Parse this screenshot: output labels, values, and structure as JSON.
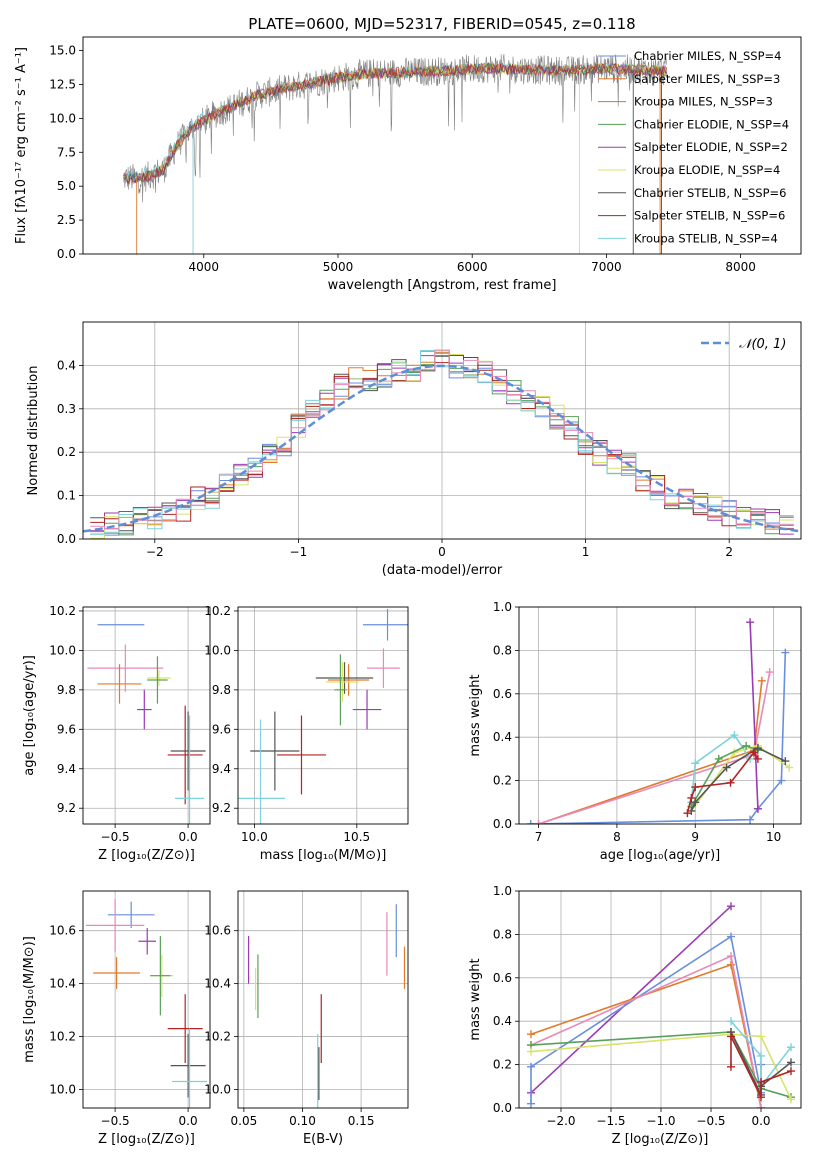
{
  "colors": {
    "chab_miles": "#6a8fdc",
    "salp_miles": "#e07b2c",
    "krou_miles": "#cc7a2a",
    "chab_elod": "#5aa05a",
    "salp_elod": "#9b3bb5",
    "krou_elod": "#d8e36a",
    "chab_stel": "#555555",
    "salp_stel": "#b02424",
    "krou_stel": "#7dd2dc",
    "pink": "#e889b8",
    "gauss": "#5b8fd6"
  },
  "chart_data": [
    {
      "id": "spectrum",
      "type": "line",
      "title": "PLATE=0600, MJD=52317, FIBERID=0545, z=0.118",
      "xlabel": "wavelength [Angstrom, rest frame]",
      "ylabel": "Flux [fλ10⁻¹⁷ erg cm⁻² s⁻¹ A⁻¹]",
      "xlim": [
        3100,
        8450
      ],
      "ylim": [
        0,
        16
      ],
      "xticks": [
        4000,
        5000,
        6000,
        7000,
        8000
      ],
      "yticks": [
        0.0,
        2.5,
        5.0,
        7.5,
        10.0,
        12.5,
        15.0
      ],
      "legend": [
        {
          "label": "Chabrier MILES, N_SSP=4",
          "color": "chab_miles"
        },
        {
          "label": "Salpeter MILES, N_SSP=3",
          "color": "salp_miles"
        },
        {
          "label": "Kroupa MILES, N_SSP=3",
          "color": "krou_miles"
        },
        {
          "label": "Chabrier ELODIE, N_SSP=4",
          "color": "chab_elod"
        },
        {
          "label": "Salpeter ELODIE, N_SSP=2",
          "color": "salp_elod"
        },
        {
          "label": "Kroupa ELODIE, N_SSP=4",
          "color": "krou_elod"
        },
        {
          "label": "Chabrier STELIB, N_SSP=6",
          "color": "chab_stel"
        },
        {
          "label": "Salpeter STELIB, N_SSP=6",
          "color": "salp_stel"
        },
        {
          "label": "Kroupa STELIB, N_SSP=4",
          "color": "krou_stel"
        }
      ],
      "legend_placement": "right",
      "continuum": {
        "x": [
          3400,
          3550,
          3700,
          3800,
          3900,
          4000,
          4100,
          4200,
          4400,
          4600,
          4800,
          5000,
          5200,
          5500,
          5800,
          6100,
          6400,
          6700,
          7000,
          7200,
          7400
        ],
        "y": [
          5.6,
          5.6,
          6.2,
          8.0,
          9.2,
          9.8,
          10.4,
          10.8,
          11.7,
          12.2,
          12.6,
          13.0,
          13.3,
          13.4,
          13.5,
          13.7,
          13.6,
          13.5,
          13.7,
          13.6,
          13.5
        ]
      }
    },
    {
      "id": "residuals",
      "type": "step",
      "xlabel": "(data-model)/error",
      "ylabel": "Normed distribution",
      "xlim": [
        -2.5,
        2.5
      ],
      "ylim": [
        0,
        0.5
      ],
      "xticks": [
        -2,
        -1,
        0,
        1,
        2
      ],
      "yticks": [
        0.0,
        0.1,
        0.2,
        0.3,
        0.4
      ],
      "legend": [
        {
          "label": "𝒩(0, 1)",
          "color": "gauss"
        }
      ],
      "legend_placement": "top-right",
      "bin_centers": [
        -2.4,
        -2.3,
        -2.2,
        -2.1,
        -2.0,
        -1.9,
        -1.8,
        -1.7,
        -1.6,
        -1.5,
        -1.4,
        -1.3,
        -1.2,
        -1.1,
        -1.0,
        -0.9,
        -0.8,
        -0.7,
        -0.6,
        -0.5,
        -0.4,
        -0.3,
        -0.2,
        -0.1,
        0.0,
        0.1,
        0.2,
        0.3,
        0.4,
        0.5,
        0.6,
        0.7,
        0.8,
        0.9,
        1.0,
        1.1,
        1.2,
        1.3,
        1.4,
        1.5,
        1.6,
        1.7,
        1.8,
        1.9,
        2.0,
        2.1,
        2.2,
        2.3,
        2.4
      ],
      "histogram_mean": [
        0.025,
        0.03,
        0.035,
        0.045,
        0.05,
        0.06,
        0.07,
        0.09,
        0.1,
        0.12,
        0.15,
        0.17,
        0.19,
        0.21,
        0.26,
        0.29,
        0.32,
        0.35,
        0.37,
        0.37,
        0.38,
        0.39,
        0.39,
        0.41,
        0.41,
        0.4,
        0.39,
        0.38,
        0.36,
        0.34,
        0.32,
        0.3,
        0.28,
        0.26,
        0.22,
        0.2,
        0.18,
        0.17,
        0.14,
        0.12,
        0.1,
        0.09,
        0.08,
        0.07,
        0.06,
        0.05,
        0.045,
        0.04,
        0.035
      ]
    },
    {
      "id": "age_vs_Z",
      "type": "errorbar",
      "xlabel": "Z [log₁₀(Z/Z⊙)]",
      "ylabel": "age  [log₁₀(age/yr)]",
      "xlim": [
        -0.72,
        0.15
      ],
      "ylim": [
        9.12,
        10.22
      ],
      "xticks": [
        -0.5,
        0.0
      ],
      "yticks": [
        9.2,
        9.4,
        9.6,
        9.8,
        10.0,
        10.2
      ],
      "points": [
        {
          "x": -0.46,
          "y": 10.13,
          "xerr": 0.16,
          "yerr": 0.0,
          "color": "chab_miles"
        },
        {
          "x": -0.43,
          "y": 9.91,
          "xerr": 0.26,
          "yerr": 0.12,
          "color": "pink"
        },
        {
          "x": -0.47,
          "y": 9.83,
          "xerr": 0.15,
          "yerr": 0.1,
          "color": "salp_miles"
        },
        {
          "x": -0.2,
          "y": 9.86,
          "xerr": 0.08,
          "yerr": 0.04,
          "color": "krou_elod"
        },
        {
          "x": -0.21,
          "y": 9.85,
          "xerr": 0.07,
          "yerr": 0.12,
          "color": "chab_elod"
        },
        {
          "x": -0.3,
          "y": 9.7,
          "xerr": 0.05,
          "yerr": 0.1,
          "color": "salp_elod"
        },
        {
          "x": 0.0,
          "y": 9.49,
          "xerr": 0.12,
          "yerr": 0.2,
          "color": "chab_stel"
        },
        {
          "x": -0.02,
          "y": 9.47,
          "xerr": 0.12,
          "yerr": 0.25,
          "color": "salp_stel"
        },
        {
          "x": 0.01,
          "y": 9.25,
          "xerr": 0.1,
          "yerr": 0.42,
          "color": "krou_stel"
        }
      ]
    },
    {
      "id": "age_vs_mass",
      "type": "errorbar",
      "xlabel": "mass [log₁₀(M/M⊙)]",
      "ylabel": "",
      "xlim": [
        9.92,
        10.75
      ],
      "ylim": [
        9.12,
        10.22
      ],
      "xticks": [
        10.0,
        10.5
      ],
      "yticks": [
        9.2,
        9.4,
        9.6,
        9.8,
        10.0,
        10.2
      ],
      "points": [
        {
          "x": 10.65,
          "y": 10.13,
          "xerr": 0.12,
          "yerr": 0.08,
          "color": "chab_miles"
        },
        {
          "x": 10.63,
          "y": 9.91,
          "xerr": 0.08,
          "yerr": 0.1,
          "color": "pink"
        },
        {
          "x": 10.46,
          "y": 9.85,
          "xerr": 0.1,
          "yerr": 0.08,
          "color": "salp_miles"
        },
        {
          "x": 10.44,
          "y": 9.86,
          "xerr": 0.14,
          "yerr": 0.08,
          "color": "chab_stel"
        },
        {
          "x": 10.43,
          "y": 9.84,
          "xerr": 0.08,
          "yerr": 0.1,
          "color": "krou_elod"
        },
        {
          "x": 10.42,
          "y": 9.8,
          "xerr": 0.03,
          "yerr": 0.18,
          "color": "chab_elod"
        },
        {
          "x": 10.55,
          "y": 9.7,
          "xerr": 0.07,
          "yerr": 0.1,
          "color": "salp_elod"
        },
        {
          "x": 10.1,
          "y": 9.49,
          "xerr": 0.12,
          "yerr": 0.2,
          "color": "chab_stel"
        },
        {
          "x": 10.23,
          "y": 9.47,
          "xerr": 0.12,
          "yerr": 0.2,
          "color": "salp_stel"
        },
        {
          "x": 10.03,
          "y": 9.25,
          "xerr": 0.12,
          "yerr": 0.4,
          "color": "krou_stel"
        }
      ]
    },
    {
      "id": "mass_weight_vs_age",
      "type": "line",
      "xlabel": "age  [log₁₀(age/yr)]",
      "ylabel": "mass weight",
      "xlim": [
        6.75,
        10.35
      ],
      "ylim": [
        0,
        1.0
      ],
      "xticks": [
        7,
        8,
        9,
        10
      ],
      "yticks": [
        0.0,
        0.2,
        0.4,
        0.6,
        0.8,
        1.0
      ],
      "series": [
        {
          "color": "chab_miles",
          "x": [
            6.9,
            9.7,
            9.8,
            10.1,
            10.15
          ],
          "y": [
            0.0,
            0.02,
            0.07,
            0.2,
            0.79
          ]
        },
        {
          "color": "salp_miles",
          "x": [
            7.0,
            9.75,
            9.85
          ],
          "y": [
            0.0,
            0.34,
            0.66
          ]
        },
        {
          "color": "pink",
          "x": [
            7.0,
            9.75,
            9.95
          ],
          "y": [
            0.0,
            0.32,
            0.7
          ]
        },
        {
          "color": "salp_elod",
          "x": [
            9.7,
            9.8
          ],
          "y": [
            0.93,
            0.07
          ]
        },
        {
          "color": "krou_stel",
          "x": [
            8.95,
            9.0,
            9.5,
            9.7
          ],
          "y": [
            0.1,
            0.28,
            0.41,
            0.3
          ]
        },
        {
          "color": "krou_elod",
          "x": [
            8.95,
            9.5,
            9.8,
            10.2
          ],
          "y": [
            0.06,
            0.33,
            0.36,
            0.26
          ]
        },
        {
          "color": "chab_elod",
          "x": [
            8.95,
            9.3,
            9.65,
            9.8
          ],
          "y": [
            0.08,
            0.3,
            0.36,
            0.34
          ]
        },
        {
          "color": "chab_stel",
          "x": [
            8.95,
            9.0,
            9.4,
            9.8,
            10.15
          ],
          "y": [
            0.06,
            0.1,
            0.26,
            0.35,
            0.29
          ]
        },
        {
          "color": "salp_stel",
          "x": [
            8.9,
            8.95,
            9.0,
            9.45,
            9.75,
            9.8
          ],
          "y": [
            0.05,
            0.12,
            0.17,
            0.19,
            0.33,
            0.3
          ]
        }
      ]
    },
    {
      "id": "mass_vs_Z",
      "type": "errorbar",
      "xlabel": "Z [log₁₀(Z/Z⊙)]",
      "ylabel": "mass [log₁₀(M/M⊙)]",
      "xlim": [
        -0.72,
        0.15
      ],
      "ylim": [
        9.93,
        10.75
      ],
      "xticks": [
        -0.5,
        0.0
      ],
      "yticks": [
        10.0,
        10.2,
        10.4,
        10.6
      ],
      "points": [
        {
          "x": -0.39,
          "y": 10.66,
          "xerr": 0.16,
          "yerr": 0.05,
          "color": "chab_miles"
        },
        {
          "x": -0.5,
          "y": 10.62,
          "xerr": 0.2,
          "yerr": 0.1,
          "color": "pink"
        },
        {
          "x": -0.28,
          "y": 10.56,
          "xerr": 0.06,
          "yerr": 0.05,
          "color": "salp_elod"
        },
        {
          "x": -0.49,
          "y": 10.44,
          "xerr": 0.16,
          "yerr": 0.06,
          "color": "salp_miles"
        },
        {
          "x": -0.18,
          "y": 10.43,
          "xerr": 0.08,
          "yerr": 0.08,
          "color": "krou_elod"
        },
        {
          "x": -0.19,
          "y": 10.43,
          "xerr": 0.07,
          "yerr": 0.15,
          "color": "chab_elod"
        },
        {
          "x": -0.02,
          "y": 10.23,
          "xerr": 0.12,
          "yerr": 0.13,
          "color": "salp_stel"
        },
        {
          "x": 0.0,
          "y": 10.09,
          "xerr": 0.12,
          "yerr": 0.12,
          "color": "chab_stel"
        },
        {
          "x": 0.01,
          "y": 10.03,
          "xerr": 0.12,
          "yerr": 0.2,
          "color": "krou_stel"
        }
      ]
    },
    {
      "id": "EBV",
      "type": "errorbar",
      "xlabel": "E(B-V)",
      "ylabel": "",
      "xlim": [
        0.045,
        0.19
      ],
      "ylim": [
        9.93,
        10.75
      ],
      "xticks": [
        0.05,
        0.1,
        0.15
      ],
      "xtick_labels": [
        "0.05",
        "0.10",
        "0.15"
      ],
      "yticks": [
        10.0,
        10.2,
        10.4,
        10.6
      ],
      "points": [
        {
          "x": 0.054,
          "y": 10.49,
          "xerr": 0,
          "yerr": 0.09,
          "color": "salp_elod"
        },
        {
          "x": 0.06,
          "y": 10.38,
          "xerr": 0,
          "yerr": 0.08,
          "color": "krou_elod"
        },
        {
          "x": 0.062,
          "y": 10.39,
          "xerr": 0,
          "yerr": 0.12,
          "color": "chab_elod"
        },
        {
          "x": 0.113,
          "y": 10.04,
          "xerr": 0,
          "yerr": 0.17,
          "color": "krou_stel"
        },
        {
          "x": 0.114,
          "y": 10.06,
          "xerr": 0,
          "yerr": 0.1,
          "color": "chab_stel"
        },
        {
          "x": 0.116,
          "y": 10.23,
          "xerr": 0,
          "yerr": 0.13,
          "color": "salp_stel"
        },
        {
          "x": 0.172,
          "y": 10.55,
          "xerr": 0,
          "yerr": 0.12,
          "color": "pink"
        },
        {
          "x": 0.18,
          "y": 10.6,
          "xerr": 0,
          "yerr": 0.1,
          "color": "chab_miles"
        },
        {
          "x": 0.187,
          "y": 10.46,
          "xerr": 0,
          "yerr": 0.08,
          "color": "salp_miles"
        }
      ]
    },
    {
      "id": "mass_weight_vs_Z",
      "type": "line",
      "xlabel": "Z [log₁₀(Z/Z⊙)]",
      "ylabel": "mass weight",
      "xlim": [
        -2.42,
        0.4
      ],
      "ylim": [
        0,
        1.0
      ],
      "xticks": [
        -2.0,
        -1.5,
        -1.0,
        -0.5,
        0.0
      ],
      "yticks": [
        0.0,
        0.2,
        0.4,
        0.6,
        0.8,
        1.0
      ],
      "series": [
        {
          "color": "salp_elod",
          "x": [
            -2.3,
            -0.3
          ],
          "y": [
            0.07,
            0.93
          ]
        },
        {
          "color": "chab_miles",
          "x": [
            -2.3,
            -2.3,
            -0.3,
            0.0,
            0.0
          ],
          "y": [
            0.02,
            0.19,
            0.79,
            0.07,
            0.2
          ]
        },
        {
          "color": "salp_miles",
          "x": [
            -2.3,
            -0.3,
            0.0
          ],
          "y": [
            0.34,
            0.66,
            0.0
          ]
        },
        {
          "color": "pink",
          "x": [
            -2.3,
            -0.3,
            0.0
          ],
          "y": [
            0.29,
            0.7,
            0.0
          ]
        },
        {
          "color": "chab_elod",
          "x": [
            -2.3,
            -0.3,
            0.0,
            0.3
          ],
          "y": [
            0.29,
            0.35,
            0.09,
            0.05
          ]
        },
        {
          "color": "krou_elod",
          "x": [
            -2.3,
            -0.3,
            0.0,
            0.3
          ],
          "y": [
            0.26,
            0.34,
            0.33,
            0.04
          ]
        },
        {
          "color": "krou_stel",
          "x": [
            -0.3,
            0.0,
            0.0,
            0.3
          ],
          "y": [
            0.4,
            0.24,
            0.1,
            0.28
          ]
        },
        {
          "color": "chab_stel",
          "x": [
            -0.3,
            0.0,
            0.0,
            0.3
          ],
          "y": [
            0.35,
            0.06,
            0.1,
            0.21
          ]
        },
        {
          "color": "salp_stel",
          "x": [
            -0.3,
            -0.3,
            0.0,
            0.0,
            0.3
          ],
          "y": [
            0.19,
            0.33,
            0.05,
            0.12,
            0.17
          ]
        }
      ]
    }
  ]
}
